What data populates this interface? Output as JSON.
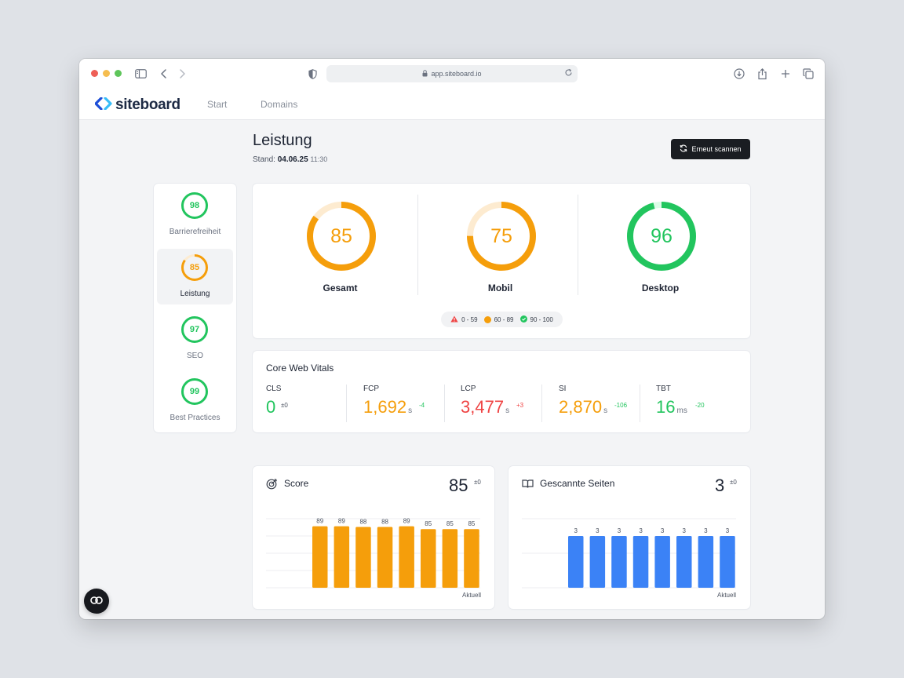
{
  "browser": {
    "url": "app.siteboard.io",
    "traffic_lights": [
      "#ee5f57",
      "#f5bd4f",
      "#5ec55a"
    ]
  },
  "nav": {
    "logo_text": "siteboard",
    "links": [
      "Start",
      "Domains"
    ]
  },
  "page": {
    "title": "Leistung",
    "stand_label": "Stand:",
    "stand_date": "04.06.25",
    "stand_time": "11:30",
    "rescan_label": "Erneut scannen"
  },
  "sidebar": {
    "items": [
      {
        "score": "98",
        "label": "Barrierefreiheit",
        "status": "good"
      },
      {
        "score": "85",
        "label": "Leistung",
        "status": "medium",
        "active": true
      },
      {
        "score": "97",
        "label": "SEO",
        "status": "good"
      },
      {
        "score": "99",
        "label": "Best Practices",
        "status": "good"
      }
    ]
  },
  "scores": [
    {
      "value": 85,
      "display": "85",
      "label": "Gesamt",
      "status": "medium"
    },
    {
      "value": 75,
      "display": "75",
      "label": "Mobil",
      "status": "medium"
    },
    {
      "value": 96,
      "display": "96",
      "label": "Desktop",
      "status": "good"
    }
  ],
  "legend": [
    {
      "range": "0 - 59",
      "status": "bad"
    },
    {
      "range": "60 - 89",
      "status": "medium"
    },
    {
      "range": "90 - 100",
      "status": "good"
    }
  ],
  "cwv": {
    "title": "Core Web Vitals",
    "metrics": [
      {
        "label": "CLS",
        "value": "0",
        "unit": "",
        "delta": "±0",
        "status": "good",
        "delta_status": "neutral"
      },
      {
        "label": "FCP",
        "value": "1,692",
        "unit": "s",
        "delta": "-4",
        "status": "medium",
        "delta_status": "good"
      },
      {
        "label": "LCP",
        "value": "3,477",
        "unit": "s",
        "delta": "+3",
        "status": "bad",
        "delta_status": "bad"
      },
      {
        "label": "SI",
        "value": "2,870",
        "unit": "s",
        "delta": "-106",
        "status": "medium",
        "delta_status": "good"
      },
      {
        "label": "TBT",
        "value": "16",
        "unit": "ms",
        "delta": "-20",
        "status": "good",
        "delta_status": "good"
      }
    ]
  },
  "score_chart": {
    "title": "Score",
    "value": "85",
    "delta": "±0",
    "footer": "Aktuell",
    "icon": "target-icon"
  },
  "pages_chart": {
    "title": "Gescannte Seiten",
    "value": "3",
    "delta": "±0",
    "footer": "Aktuell",
    "icon": "book-icon"
  },
  "chart_data": [
    {
      "type": "bar",
      "title": "Score",
      "categories": [
        "",
        "",
        "",
        "",
        "",
        "",
        "",
        ""
      ],
      "values": [
        89,
        89,
        88,
        88,
        89,
        85,
        85,
        85
      ],
      "ylim": [
        0,
        100
      ],
      "grid": true,
      "color": "#f59e0b"
    },
    {
      "type": "bar",
      "title": "Gescannte Seiten",
      "categories": [
        "",
        "",
        "",
        "",
        "",
        "",
        "",
        ""
      ],
      "values": [
        3,
        3,
        3,
        3,
        3,
        3,
        3,
        3
      ],
      "ylim": [
        0,
        4
      ],
      "grid": true,
      "color": "#3b82f6"
    }
  ],
  "colors": {
    "good": "#22c55e",
    "medium": "#f59e0b",
    "bad": "#ef4444",
    "neutral": "#4b5260",
    "brand_dark": "#1d2a44",
    "brand_blue": "#3b82f6"
  }
}
